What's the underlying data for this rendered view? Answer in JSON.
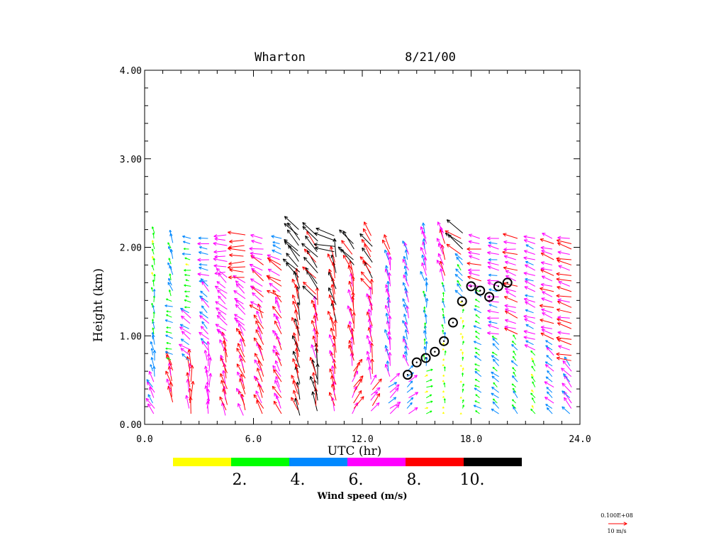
{
  "chart_data": {
    "type": "quiver",
    "title": {
      "station": "Wharton",
      "date": "8/21/00"
    },
    "xlabel": "UTC (hr)",
    "ylabel": "Height (km)",
    "xlim": [
      0,
      24
    ],
    "ylim": [
      0,
      4
    ],
    "x_ticks": [
      {
        "value": 0,
        "label": "0.0"
      },
      {
        "value": 6,
        "label": "6.0"
      },
      {
        "value": 12,
        "label": "12.0"
      },
      {
        "value": 18,
        "label": "18.0"
      },
      {
        "value": 24,
        "label": "24.0"
      }
    ],
    "y_ticks": [
      {
        "value": 0,
        "label": "0.00"
      },
      {
        "value": 1,
        "label": "1.00"
      },
      {
        "value": 2,
        "label": "2.00"
      },
      {
        "value": 3,
        "label": "3.00"
      },
      {
        "value": 4,
        "label": "4.00"
      }
    ],
    "x_minor_step": 1,
    "y_minor_step": 0.2,
    "profile_step_km": 0.06,
    "wind_columns_note_units": "layers: [top_km, speed_m_s, direction_deg_ccw_from_east]",
    "wind_columns": [
      {
        "utc": 0.5,
        "bottom": 0.12,
        "top": 2.2,
        "layers": [
          [
            0.5,
            6.5,
            120
          ],
          [
            1.0,
            5,
            100
          ],
          [
            1.6,
            3.5,
            95
          ],
          [
            2.2,
            3,
            100
          ]
        ]
      },
      {
        "utc": 1.5,
        "bottom": 0.25,
        "top": 2.15,
        "layers": [
          [
            0.7,
            8.5,
            105
          ],
          [
            1.4,
            3.5,
            165
          ],
          [
            2.15,
            4.5,
            110
          ]
        ]
      },
      {
        "utc": 2.5,
        "bottom": 0.12,
        "top": 2.15,
        "layers": [
          [
            0.7,
            8.5,
            92
          ],
          [
            1.3,
            6.5,
            145
          ],
          [
            1.9,
            3,
            170
          ],
          [
            2.15,
            4,
            170
          ]
        ]
      },
      {
        "utc": 3.5,
        "bottom": 0.12,
        "top": 2.15,
        "layers": [
          [
            0.8,
            7,
            92
          ],
          [
            1.6,
            6,
            135
          ],
          [
            2.15,
            5.5,
            172
          ]
        ]
      },
      {
        "utc": 4.5,
        "bottom": 0.1,
        "top": 2.15,
        "layers": [
          [
            0.9,
            8.5,
            105
          ],
          [
            1.7,
            7,
            140
          ],
          [
            2.15,
            7,
            178
          ]
        ]
      },
      {
        "utc": 5.5,
        "bottom": 0.1,
        "top": 2.15,
        "layers": [
          [
            1.0,
            8.5,
            112
          ],
          [
            1.6,
            7,
            140
          ],
          [
            2.15,
            9,
            180
          ]
        ]
      },
      {
        "utc": 6.5,
        "bottom": 0.12,
        "top": 2.15,
        "layers": [
          [
            1.2,
            8.5,
            115
          ],
          [
            1.8,
            8,
            145
          ],
          [
            2.15,
            7,
            170
          ]
        ]
      },
      {
        "utc": 7.5,
        "bottom": 0.12,
        "top": 2.15,
        "layers": [
          [
            1.4,
            7.5,
            118
          ],
          [
            1.9,
            8.5,
            150
          ],
          [
            2.15,
            5,
            160
          ]
        ]
      },
      {
        "utc": 8.5,
        "bottom": 0.1,
        "top": 2.2,
        "layers": [
          [
            0.5,
            9,
            108
          ],
          [
            1.6,
            9,
            105
          ],
          [
            2.2,
            11,
            132
          ]
        ]
      },
      {
        "utc": 9.5,
        "bottom": 0.15,
        "top": 2.15,
        "layers": [
          [
            0.7,
            11,
            100
          ],
          [
            1.4,
            9,
            100
          ],
          [
            2.15,
            11,
            130
          ]
        ]
      },
      {
        "utc": 10.5,
        "bottom": 0.15,
        "top": 2.15,
        "layers": [
          [
            1.0,
            8.5,
            102
          ],
          [
            1.9,
            9.5,
            105
          ],
          [
            2.15,
            12,
            165
          ]
        ]
      },
      {
        "utc": 11.5,
        "bottom": 0.12,
        "top": 2.05,
        "layers": [
          [
            0.6,
            8,
            60
          ],
          [
            1.7,
            8.5,
            100
          ],
          [
            2.05,
            11,
            130
          ]
        ]
      },
      {
        "utc": 12.5,
        "bottom": 0.15,
        "top": 2.15,
        "layers": [
          [
            0.5,
            7,
            50
          ],
          [
            1.5,
            7.5,
            100
          ],
          [
            2.15,
            9,
            125
          ]
        ]
      },
      {
        "utc": 13.5,
        "bottom": 0.12,
        "top": 2.0,
        "layers": [
          [
            0.5,
            6.5,
            40
          ],
          [
            1.9,
            7,
            100
          ],
          [
            2.0,
            8.5,
            120
          ]
        ]
      },
      {
        "utc": 14.5,
        "bottom": 0.12,
        "top": 2.0,
        "layers": [
          [
            0.6,
            5,
            40
          ],
          [
            2.0,
            6,
            108
          ]
        ]
      },
      {
        "utc": 15.5,
        "bottom": 0.12,
        "top": 2.2,
        "layers": [
          [
            0.6,
            3,
            20
          ],
          [
            1.6,
            4.5,
            95
          ],
          [
            2.2,
            7,
            105
          ]
        ]
      },
      {
        "utc": 16.5,
        "bottom": 0.12,
        "top": 2.2,
        "layers": [
          [
            0.9,
            1.5,
            90
          ],
          [
            1.6,
            3,
            100
          ],
          [
            2.2,
            7.5,
            112
          ]
        ]
      },
      {
        "utc": 17.5,
        "bottom": 0.12,
        "top": 2.2,
        "layers": [
          [
            1.4,
            1.5,
            80
          ],
          [
            1.9,
            5,
            130
          ],
          [
            2.2,
            11,
            145
          ]
        ]
      },
      {
        "utc": 18.5,
        "bottom": 0.12,
        "top": 2.15,
        "layers": [
          [
            1.5,
            3.5,
            150
          ],
          [
            2.15,
            7,
            170
          ]
        ]
      },
      {
        "utc": 19.5,
        "bottom": 0.12,
        "top": 2.15,
        "layers": [
          [
            1.0,
            4.5,
            140
          ],
          [
            2.15,
            6,
            170
          ]
        ]
      },
      {
        "utc": 20.5,
        "bottom": 0.12,
        "top": 2.15,
        "layers": [
          [
            1.0,
            3.5,
            130
          ],
          [
            1.8,
            7,
            160
          ],
          [
            2.15,
            7.5,
            172
          ]
        ]
      },
      {
        "utc": 21.5,
        "bottom": 0.12,
        "top": 2.15,
        "layers": [
          [
            0.8,
            3,
            125
          ],
          [
            2.15,
            6,
            160
          ]
        ]
      },
      {
        "utc": 22.5,
        "bottom": 0.12,
        "top": 2.15,
        "layers": [
          [
            0.9,
            5,
            140
          ],
          [
            2.15,
            7,
            162
          ]
        ]
      },
      {
        "utc": 23.5,
        "bottom": 0.12,
        "top": 2.15,
        "layers": [
          [
            0.7,
            7,
            130
          ],
          [
            2.15,
            8,
            166
          ]
        ]
      }
    ],
    "boundary_layer_heights": [
      {
        "utc": 14.5,
        "km": 0.56
      },
      {
        "utc": 15.0,
        "km": 0.7
      },
      {
        "utc": 15.5,
        "km": 0.75
      },
      {
        "utc": 16.0,
        "km": 0.82
      },
      {
        "utc": 16.5,
        "km": 0.94
      },
      {
        "utc": 17.0,
        "km": 1.15
      },
      {
        "utc": 17.5,
        "km": 1.39
      },
      {
        "utc": 18.0,
        "km": 1.56
      },
      {
        "utc": 18.5,
        "km": 1.51
      },
      {
        "utc": 19.0,
        "km": 1.44
      },
      {
        "utc": 19.5,
        "km": 1.56
      },
      {
        "utc": 20.0,
        "km": 1.6
      }
    ],
    "colorbar": {
      "title": "Wind speed (m/s)",
      "bins": [
        {
          "max": 2,
          "color": "#ffff00"
        },
        {
          "max": 4,
          "color": "#00ff00"
        },
        {
          "max": 6,
          "color": "#0088ff"
        },
        {
          "max": 8,
          "color": "#ff00ff"
        },
        {
          "max": 10,
          "color": "#ff0000"
        },
        {
          "max": 999,
          "color": "#000000"
        }
      ],
      "labels": [
        "2.",
        "4.",
        "6.",
        "8.",
        "10."
      ]
    },
    "reference_vector": {
      "scale_text": "0.100E+08",
      "units_text": "10 m/s",
      "speed": 10,
      "color": "#ff0000"
    }
  }
}
